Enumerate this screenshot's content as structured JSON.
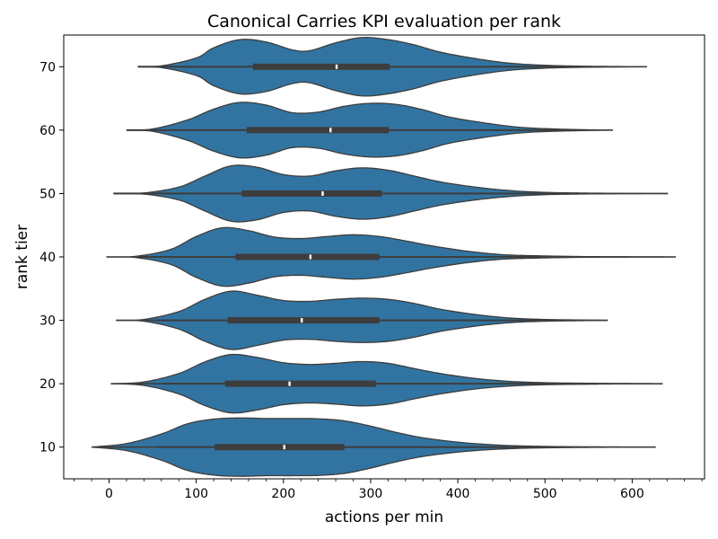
{
  "chart_data": {
    "type": "violin",
    "title": "Canonical Carries KPI evaluation per rank",
    "xlabel": "actions per min",
    "ylabel": "rank tier",
    "xlim": [
      -52,
      683
    ],
    "x_ticks": [
      0,
      100,
      200,
      300,
      400,
      500,
      600
    ],
    "x_tick_labels": [
      "0",
      "100",
      "200",
      "300",
      "400",
      "500",
      "600"
    ],
    "x_minor_step": 20,
    "grid": false,
    "legend": "none",
    "fill_color": "#3274a1",
    "edge_color": "#3d3d3d",
    "median_color": "#ffffff",
    "categories": [
      "70",
      "60",
      "50",
      "40",
      "30",
      "20",
      "10"
    ],
    "violins": [
      {
        "rank": "70",
        "min": 33,
        "max": 617,
        "whisker_low": 33,
        "whisker_high": 540,
        "q1": 165,
        "median": 261,
        "q3": 322,
        "density_x": [
          33,
          60,
          100,
          120,
          150,
          180,
          210,
          230,
          260,
          290,
          320,
          350,
          380,
          420,
          460,
          500,
          540,
          580,
          617
        ],
        "density": [
          0.0,
          0.03,
          0.3,
          0.65,
          0.93,
          0.85,
          0.58,
          0.55,
          0.82,
          1.0,
          0.93,
          0.75,
          0.5,
          0.28,
          0.12,
          0.05,
          0.02,
          0.008,
          0.0
        ]
      },
      {
        "rank": "60",
        "min": 20,
        "max": 578,
        "whisker_low": 20,
        "whisker_high": 535,
        "q1": 158,
        "median": 254,
        "q3": 321,
        "density_x": [
          20,
          50,
          90,
          120,
          150,
          180,
          210,
          240,
          270,
          300,
          330,
          360,
          390,
          430,
          470,
          510,
          550,
          578
        ],
        "density": [
          0.0,
          0.04,
          0.35,
          0.72,
          0.95,
          0.86,
          0.6,
          0.62,
          0.82,
          0.92,
          0.88,
          0.7,
          0.45,
          0.25,
          0.1,
          0.04,
          0.012,
          0.0
        ]
      },
      {
        "rank": "50",
        "min": 5,
        "max": 641,
        "whisker_low": 5,
        "whisker_high": 540,
        "q1": 152,
        "median": 245,
        "q3": 313,
        "density_x": [
          5,
          40,
          80,
          110,
          140,
          170,
          200,
          230,
          260,
          290,
          320,
          350,
          380,
          420,
          460,
          500,
          540,
          590,
          641
        ],
        "density": [
          0.0,
          0.02,
          0.22,
          0.6,
          0.95,
          0.9,
          0.65,
          0.6,
          0.78,
          0.88,
          0.8,
          0.6,
          0.4,
          0.22,
          0.1,
          0.04,
          0.018,
          0.006,
          0.0
        ]
      },
      {
        "rank": "40",
        "min": -3,
        "max": 650,
        "whisker_low": 35,
        "whisker_high": 540,
        "q1": 145,
        "median": 231,
        "q3": 310,
        "density_x": [
          -3,
          30,
          70,
          100,
          130,
          160,
          190,
          220,
          250,
          280,
          310,
          340,
          370,
          410,
          450,
          490,
          540,
          590,
          650
        ],
        "density": [
          0.0,
          0.02,
          0.25,
          0.7,
          1.0,
          0.9,
          0.68,
          0.63,
          0.7,
          0.76,
          0.7,
          0.55,
          0.38,
          0.2,
          0.08,
          0.04,
          0.014,
          0.006,
          0.0
        ]
      },
      {
        "rank": "30",
        "min": 8,
        "max": 572,
        "whisker_low": 53,
        "whisker_high": 524,
        "q1": 136,
        "median": 221,
        "q3": 310,
        "density_x": [
          8,
          40,
          80,
          110,
          140,
          170,
          200,
          230,
          260,
          290,
          320,
          350,
          380,
          420,
          460,
          500,
          540,
          572
        ],
        "density": [
          0.0,
          0.03,
          0.3,
          0.72,
          1.0,
          0.86,
          0.68,
          0.65,
          0.72,
          0.76,
          0.72,
          0.58,
          0.38,
          0.2,
          0.08,
          0.03,
          0.012,
          0.0
        ]
      },
      {
        "rank": "20",
        "min": 2,
        "max": 635,
        "whisker_low": 62,
        "whisker_high": 560,
        "q1": 133,
        "median": 207,
        "q3": 306,
        "density_x": [
          2,
          40,
          80,
          110,
          140,
          170,
          200,
          230,
          260,
          290,
          320,
          350,
          380,
          420,
          460,
          500,
          550,
          600,
          635
        ],
        "density": [
          0.0,
          0.06,
          0.35,
          0.75,
          1.0,
          0.9,
          0.72,
          0.66,
          0.7,
          0.76,
          0.7,
          0.52,
          0.35,
          0.18,
          0.08,
          0.035,
          0.015,
          0.005,
          0.0
        ]
      },
      {
        "rank": "10",
        "min": -20,
        "max": 627,
        "whisker_low": 55,
        "whisker_high": 460,
        "q1": 121,
        "median": 201,
        "q3": 270,
        "density_x": [
          -20,
          20,
          60,
          90,
          120,
          150,
          180,
          210,
          240,
          270,
          300,
          330,
          360,
          400,
          440,
          480,
          530,
          580,
          627
        ],
        "density": [
          0.0,
          0.12,
          0.45,
          0.8,
          0.96,
          1.0,
          0.98,
          0.98,
          0.97,
          0.9,
          0.72,
          0.5,
          0.32,
          0.17,
          0.08,
          0.035,
          0.014,
          0.005,
          0.0
        ]
      }
    ]
  }
}
